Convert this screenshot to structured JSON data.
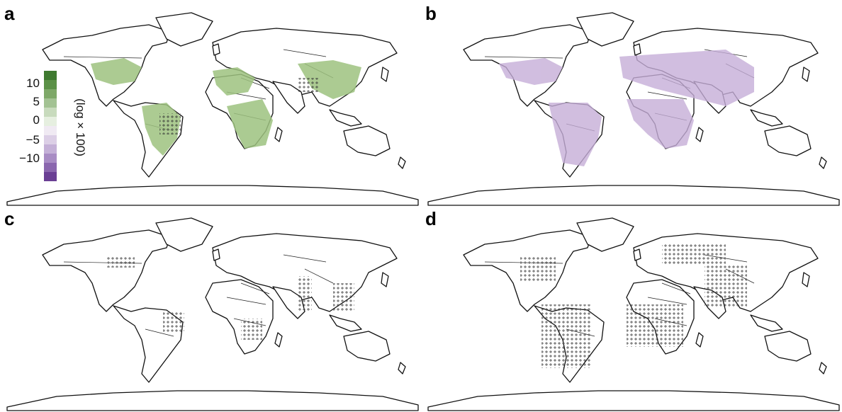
{
  "panels": [
    {
      "label": "a",
      "scheme": "green"
    },
    {
      "label": "b",
      "scheme": "purple"
    },
    {
      "label": "c",
      "scheme": "none"
    },
    {
      "label": "d",
      "scheme": "none"
    }
  ],
  "colorbar": {
    "unit": "(log × 100)",
    "ticks": [
      "10",
      "5",
      "0",
      "−5",
      "−10"
    ],
    "green_colors": [
      "#3f7a30",
      "#5b9147",
      "#7ea868",
      "#a3c293",
      "#c8dbbd",
      "#e6efe0"
    ],
    "purple_colors": [
      "#f0eaf3",
      "#dccfe6",
      "#c4b0d7",
      "#a88cc4",
      "#8a66ae",
      "#6a3f94"
    ]
  },
  "colors": {
    "hatch": "#333333",
    "coast": "#111111",
    "green_shade": "#9dc27f",
    "purple_shade": "#c6aed8"
  }
}
